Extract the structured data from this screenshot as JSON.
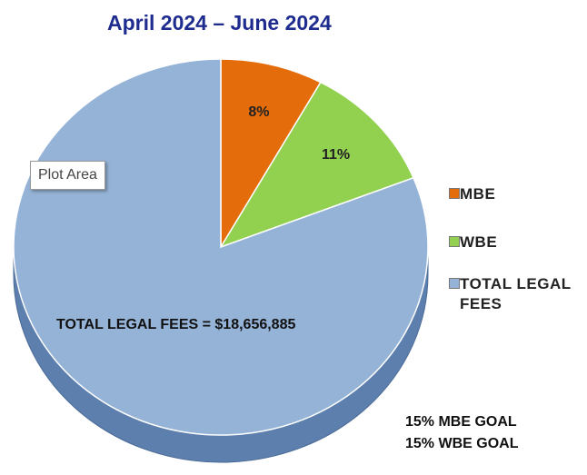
{
  "chart_data": {
    "type": "pie",
    "title": "April 2024 – June 2024",
    "categories": [
      "MBE",
      "WBE",
      "TOTAL LEGAL FEES"
    ],
    "values": [
      8,
      11,
      81
    ],
    "value_labels": [
      "8%",
      "11%",
      null
    ],
    "colors": [
      "#e46c0a",
      "#92d050",
      "#95b3d7"
    ],
    "legend": "right",
    "annotations": [
      "TOTAL LEGAL FEES = $18,656,885",
      "15% MBE GOAL",
      "15% WBE GOAL",
      "Plot Area"
    ]
  }
}
